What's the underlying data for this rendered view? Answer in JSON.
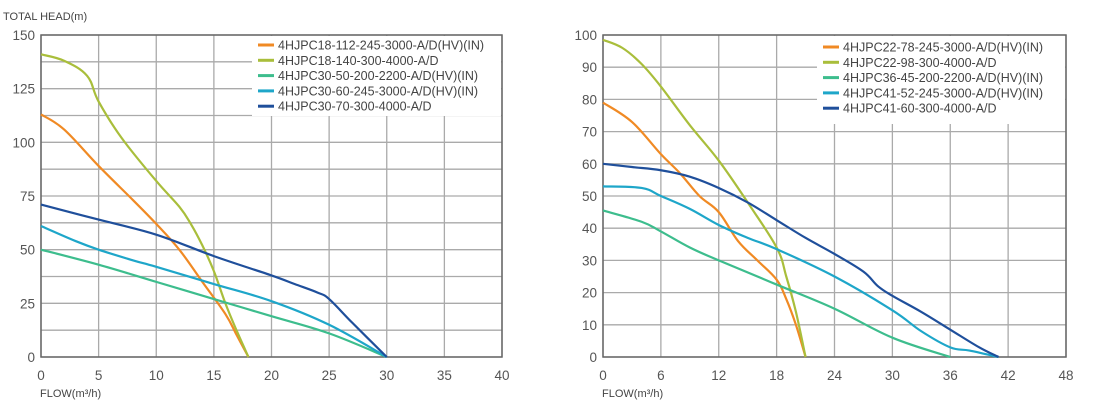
{
  "chart_data": [
    {
      "type": "line",
      "ylabel": "TOTAL HEAD(m)",
      "xlabel": "FLOW(m³/h)",
      "xlim": [
        0,
        40
      ],
      "ylim": [
        0,
        150
      ],
      "xticks": [
        0,
        5,
        10,
        15,
        20,
        25,
        30,
        35,
        40
      ],
      "yticks": [
        0,
        25,
        50,
        75,
        100,
        125,
        150
      ],
      "grid": true,
      "legend_position": "top-right",
      "series": [
        {
          "name": "4HJPC18-112-245-3000-A/D(HV)(IN)",
          "color": "#f08a24",
          "points": [
            [
              0,
              113
            ],
            [
              2,
              106
            ],
            [
              5,
              89
            ],
            [
              8,
              73
            ],
            [
              10,
              62
            ],
            [
              12,
              50
            ],
            [
              14,
              35
            ],
            [
              16,
              20
            ],
            [
              17,
              10
            ],
            [
              18,
              0
            ]
          ]
        },
        {
          "name": "4HJPC18-140-300-4000-A/D",
          "color": "#a9be3b",
          "points": [
            [
              0,
              141
            ],
            [
              2,
              138
            ],
            [
              4,
              131
            ],
            [
              5,
              119
            ],
            [
              7,
              102
            ],
            [
              10,
              82
            ],
            [
              12,
              70
            ],
            [
              13,
              62
            ],
            [
              14,
              52
            ],
            [
              15,
              40
            ],
            [
              16,
              25
            ],
            [
              17,
              12
            ],
            [
              18,
              0
            ]
          ]
        },
        {
          "name": "4HJPC30-50-200-2200-A/D(HV)(IN)",
          "color": "#3dbd8d",
          "points": [
            [
              0,
              50
            ],
            [
              5,
              43
            ],
            [
              10,
              35
            ],
            [
              15,
              27
            ],
            [
              20,
              19
            ],
            [
              25,
              11
            ],
            [
              30,
              0
            ]
          ]
        },
        {
          "name": "4HJPC30-60-245-3000-A/D(HV)(IN)",
          "color": "#1ea6c9",
          "points": [
            [
              0,
              61
            ],
            [
              3,
              54
            ],
            [
              5,
              50
            ],
            [
              8,
              45
            ],
            [
              10,
              42
            ],
            [
              15,
              34
            ],
            [
              20,
              26
            ],
            [
              25,
              15
            ],
            [
              30,
              0
            ]
          ]
        },
        {
          "name": "4HJPC30-70-300-4000-A/D",
          "color": "#1f4f9b",
          "points": [
            [
              0,
              71
            ],
            [
              5,
              64
            ],
            [
              10,
              57
            ],
            [
              15,
              47
            ],
            [
              20,
              38
            ],
            [
              22,
              34
            ],
            [
              24,
              30
            ],
            [
              25,
              27
            ],
            [
              27,
              16
            ],
            [
              30,
              0
            ]
          ]
        }
      ]
    },
    {
      "type": "line",
      "xlabel": "FLOW(m³/h)",
      "xlim": [
        0,
        48
      ],
      "ylim": [
        0,
        100
      ],
      "xticks": [
        0,
        6,
        12,
        18,
        24,
        30,
        36,
        42,
        48
      ],
      "yticks": [
        0,
        10,
        20,
        30,
        40,
        50,
        60,
        70,
        80,
        90,
        100
      ],
      "grid": true,
      "legend_position": "top-right",
      "series": [
        {
          "name": "4HJPC22-78-245-3000-A/D(HV)(IN)",
          "color": "#f08a24",
          "points": [
            [
              0,
              79
            ],
            [
              3,
              73
            ],
            [
              6,
              63
            ],
            [
              8,
              57
            ],
            [
              10,
              50
            ],
            [
              12,
              45
            ],
            [
              14,
              36
            ],
            [
              16,
              30
            ],
            [
              18,
              24
            ],
            [
              19,
              18
            ],
            [
              20,
              10
            ],
            [
              21,
              0
            ]
          ]
        },
        {
          "name": "4HJPC22-98-300-4000-A/D",
          "color": "#a9be3b",
          "points": [
            [
              0,
              98.5
            ],
            [
              2,
              96
            ],
            [
              4,
              91
            ],
            [
              6,
              84
            ],
            [
              9,
              72
            ],
            [
              12,
              61
            ],
            [
              15,
              48
            ],
            [
              18,
              34
            ],
            [
              19,
              25
            ],
            [
              20,
              14
            ],
            [
              21,
              0
            ]
          ]
        },
        {
          "name": "4HJPC36-45-200-2200-A/D(HV)(IN)",
          "color": "#3dbd8d",
          "points": [
            [
              0,
              45.5
            ],
            [
              4,
              42
            ],
            [
              6,
              39
            ],
            [
              9,
              34
            ],
            [
              12,
              30
            ],
            [
              18,
              22.5
            ],
            [
              24,
              15
            ],
            [
              30,
              6
            ],
            [
              36,
              0
            ]
          ]
        },
        {
          "name": "4HJPC41-52-245-3000-A/D(HV)(IN)",
          "color": "#1ea6c9",
          "points": [
            [
              0,
              53
            ],
            [
              4,
              52.5
            ],
            [
              6,
              50
            ],
            [
              9,
              46
            ],
            [
              12,
              41
            ],
            [
              15,
              37
            ],
            [
              18,
              33.5
            ],
            [
              24,
              25
            ],
            [
              30,
              14.5
            ],
            [
              33,
              8
            ],
            [
              36,
              3
            ],
            [
              38,
              2
            ],
            [
              41,
              0
            ]
          ]
        },
        {
          "name": "4HJPC41-60-300-4000-A/D",
          "color": "#1f4f9b",
          "points": [
            [
              0,
              60
            ],
            [
              3,
              59
            ],
            [
              6,
              58
            ],
            [
              9,
              56
            ],
            [
              12,
              52.5
            ],
            [
              15,
              48
            ],
            [
              18,
              42.5
            ],
            [
              21,
              37
            ],
            [
              24,
              32
            ],
            [
              27,
              26.5
            ],
            [
              28.5,
              22
            ],
            [
              30,
              19
            ],
            [
              33,
              14
            ],
            [
              36,
              8.5
            ],
            [
              39,
              3
            ],
            [
              41,
              0
            ]
          ]
        }
      ]
    }
  ]
}
